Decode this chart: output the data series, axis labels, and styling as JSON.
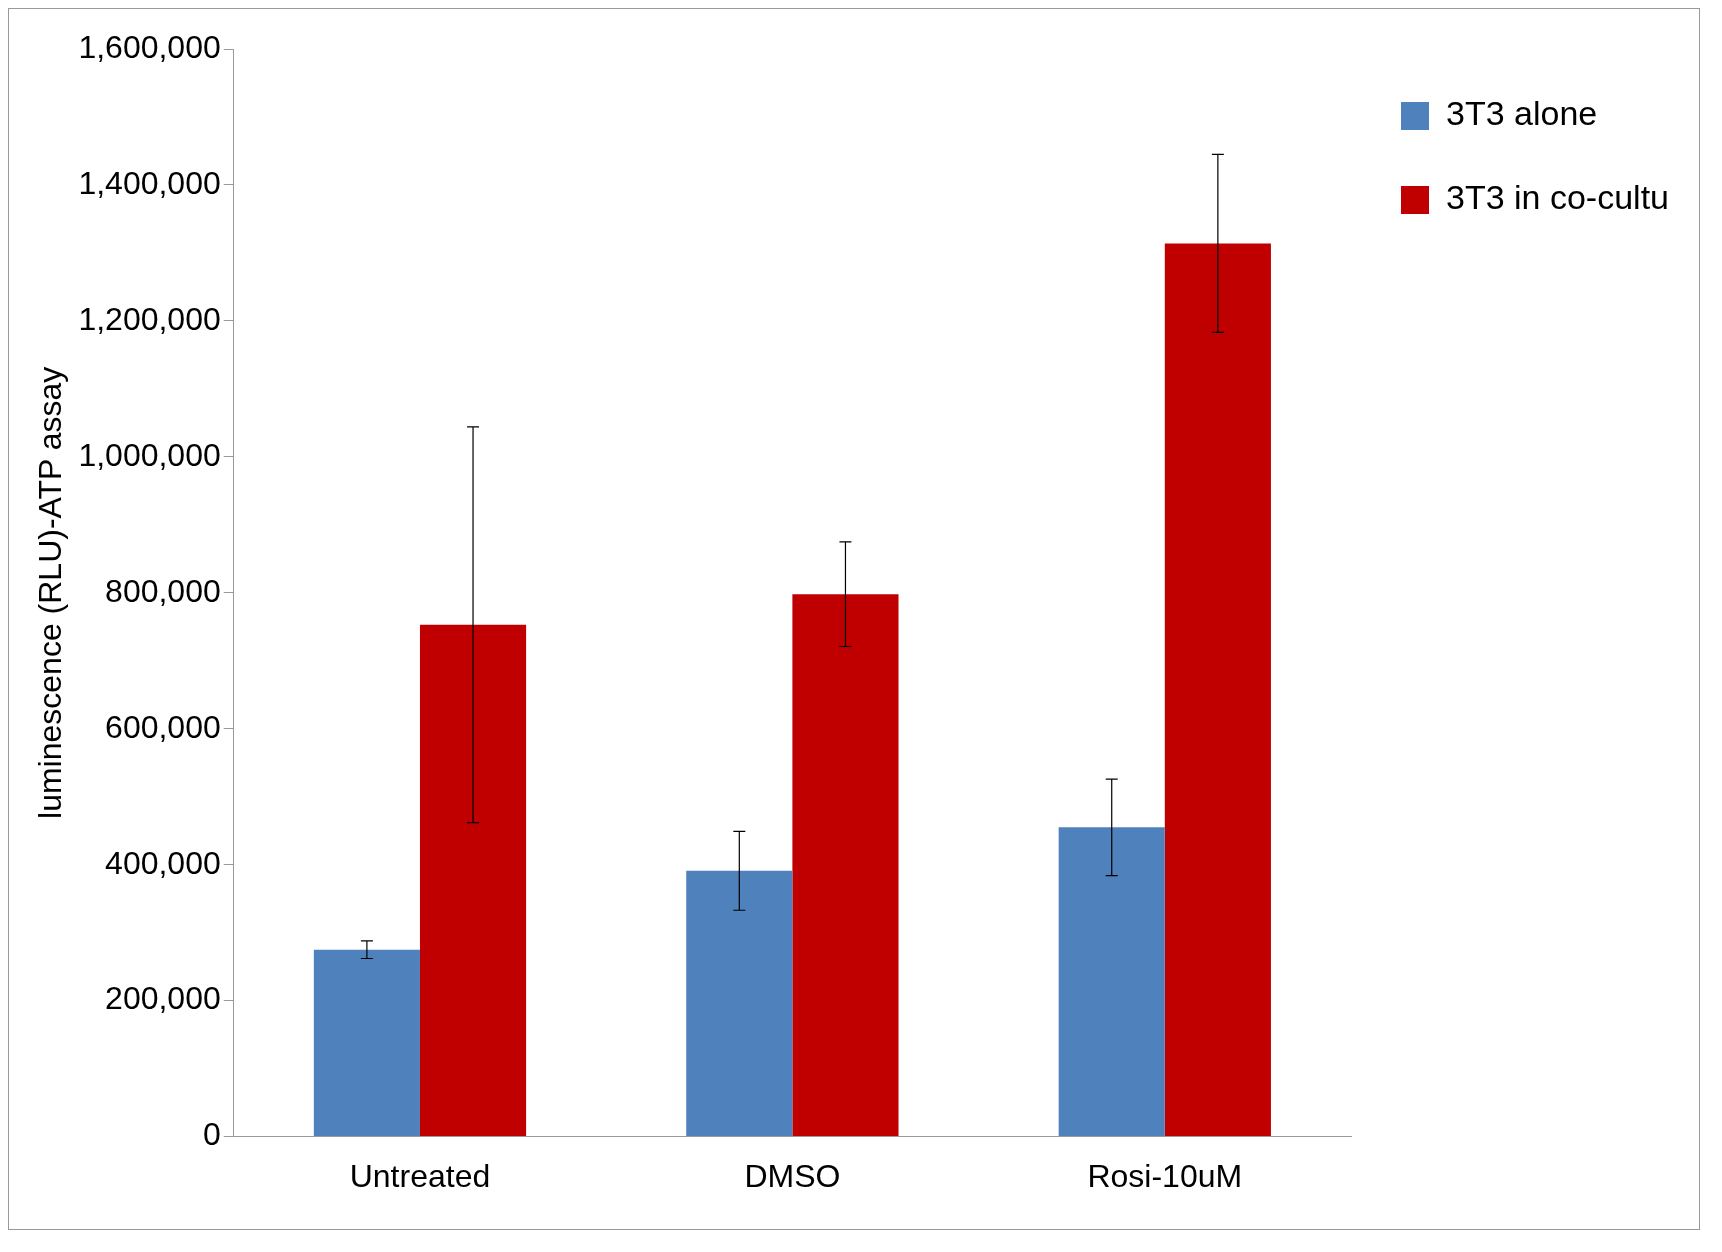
{
  "chart_data": {
    "type": "bar",
    "ylabel": "luminescence (RLU)-ATP assay",
    "categories": [
      "Untreated",
      "DMSO",
      "Rosi-10uM"
    ],
    "series": [
      {
        "name": "3T3 alone",
        "color": "#4f81bd",
        "values": [
          275000,
          391000,
          455000
        ],
        "errors": [
          13000,
          58000,
          71000
        ]
      },
      {
        "name": "3T3 in co-cultu",
        "color": "#c00000",
        "values": [
          753000,
          798000,
          1314000
        ],
        "errors": [
          291000,
          77000,
          131000
        ]
      }
    ],
    "ylim": [
      0,
      1600000
    ],
    "yticks": [
      0,
      {
        "value": 200000,
        "label": "200,000"
      },
      {
        "value": 400000,
        "label": "400,000"
      },
      {
        "value": 600000,
        "label": "600,000"
      },
      {
        "value": 800000,
        "label": "800,000"
      },
      {
        "value": 1000000,
        "label": "1,000,000"
      },
      {
        "value": 1200000,
        "label": "1,200,000"
      },
      {
        "value": 1400000,
        "label": "1,400,000"
      },
      {
        "value": 1600000,
        "label": "1,600,000"
      }
    ],
    "grid": false,
    "legend": "top right"
  }
}
